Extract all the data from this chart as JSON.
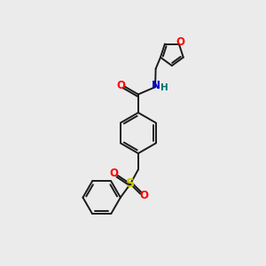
{
  "background_color": "#ebebeb",
  "bond_color": "#1a1a1a",
  "atom_colors": {
    "O": "#ff0000",
    "N": "#0000cc",
    "S": "#cccc00",
    "H": "#007070",
    "C": "#1a1a1a"
  },
  "figsize": [
    3.0,
    3.0
  ],
  "dpi": 100
}
